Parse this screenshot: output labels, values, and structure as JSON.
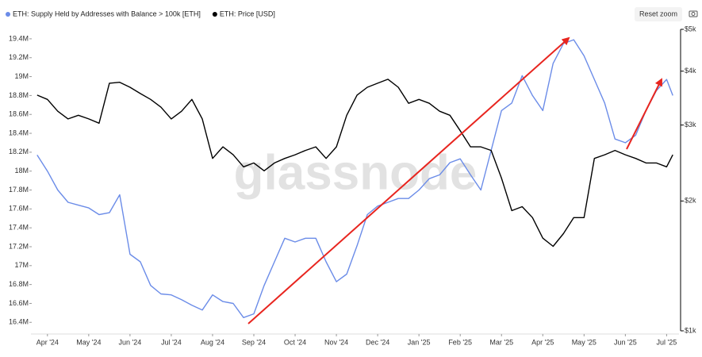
{
  "chart_data": {
    "type": "line",
    "watermark": "glassnode",
    "button": "Reset zoom",
    "x": [
      -0.25,
      0,
      0.25,
      0.5,
      0.75,
      1,
      1.25,
      1.5,
      1.75,
      2,
      2.25,
      2.5,
      2.75,
      3,
      3.25,
      3.5,
      3.75,
      4,
      4.25,
      4.5,
      4.75,
      5,
      5.25,
      5.5,
      5.75,
      6,
      6.25,
      6.5,
      6.75,
      7,
      7.25,
      7.5,
      7.75,
      8,
      8.25,
      8.5,
      8.75,
      9,
      9.25,
      9.5,
      9.75,
      10,
      10.25,
      10.5,
      10.75,
      11,
      11.25,
      11.5,
      11.75,
      12,
      12.25,
      12.5,
      12.75,
      13,
      13.25,
      13.5,
      13.75,
      14,
      14.25,
      14.5,
      14.75,
      15,
      15.15
    ],
    "series": [
      {
        "name": "ETH: Supply Held by Addresses with Balance > 100k [ETH]",
        "color": "#6b8ce8",
        "values": [
          18170000,
          18000000,
          17800000,
          17670000,
          17640000,
          17610000,
          17540000,
          17560000,
          17750000,
          17120000,
          17040000,
          16790000,
          16700000,
          16690000,
          16640000,
          16580000,
          16530000,
          16690000,
          16620000,
          16600000,
          16450000,
          16490000,
          16790000,
          17040000,
          17290000,
          17250000,
          17290000,
          17290000,
          17040000,
          16830000,
          16910000,
          17210000,
          17540000,
          17630000,
          17670000,
          17710000,
          17710000,
          17800000,
          17920000,
          17960000,
          18090000,
          18130000,
          17960000,
          17800000,
          18220000,
          18640000,
          18720000,
          19010000,
          18800000,
          18640000,
          19140000,
          19350000,
          19390000,
          19220000,
          18970000,
          18720000,
          18340000,
          18300000,
          18380000,
          18640000,
          18850000,
          18970000,
          18800000
        ]
      },
      {
        "name": "ETH: Price [USD]",
        "color": "#000000",
        "axis": "y2",
        "values": [
          3520,
          3440,
          3230,
          3100,
          3160,
          3100,
          3030,
          3750,
          3770,
          3670,
          3550,
          3440,
          3300,
          3100,
          3230,
          3440,
          3100,
          2510,
          2670,
          2560,
          2400,
          2450,
          2350,
          2450,
          2510,
          2560,
          2620,
          2670,
          2510,
          2670,
          3160,
          3520,
          3670,
          3750,
          3830,
          3670,
          3370,
          3440,
          3370,
          3230,
          3160,
          2910,
          2670,
          2670,
          2620,
          2260,
          1900,
          1940,
          1830,
          1640,
          1570,
          1680,
          1830,
          1830,
          2510,
          2560,
          2620,
          2560,
          2510,
          2450,
          2450,
          2400,
          2560
        ]
      }
    ],
    "xlim": [
      -0.4,
      15.3
    ],
    "xticks": [
      {
        "value": 0,
        "label": "Apr '24"
      },
      {
        "value": 1,
        "label": "May '24"
      },
      {
        "value": 2,
        "label": "Jun '24"
      },
      {
        "value": 3,
        "label": "Jul '24"
      },
      {
        "value": 4,
        "label": "Aug '24"
      },
      {
        "value": 5,
        "label": "Sep '24"
      },
      {
        "value": 6,
        "label": "Oct '24"
      },
      {
        "value": 7,
        "label": "Nov '24"
      },
      {
        "value": 8,
        "label": "Dec '24"
      },
      {
        "value": 9,
        "label": "Jan '25"
      },
      {
        "value": 10,
        "label": "Feb '25"
      },
      {
        "value": 11,
        "label": "Mar '25"
      },
      {
        "value": 12,
        "label": "Apr '25"
      },
      {
        "value": 13,
        "label": "May '25"
      },
      {
        "value": 14,
        "label": "Jun '25"
      },
      {
        "value": 15,
        "label": "Jul '25"
      }
    ],
    "ylim": [
      16310000,
      19500000
    ],
    "yticks": [
      {
        "value": 16400000,
        "label": "16.4M"
      },
      {
        "value": 16600000,
        "label": "16.6M"
      },
      {
        "value": 16800000,
        "label": "16.8M"
      },
      {
        "value": 17000000,
        "label": "17M"
      },
      {
        "value": 17200000,
        "label": "17.2M"
      },
      {
        "value": 17400000,
        "label": "17.4M"
      },
      {
        "value": 17600000,
        "label": "17.6M"
      },
      {
        "value": 17800000,
        "label": "17.8M"
      },
      {
        "value": 18000000,
        "label": "18M"
      },
      {
        "value": 18200000,
        "label": "18.2M"
      },
      {
        "value": 18400000,
        "label": "18.4M"
      },
      {
        "value": 18600000,
        "label": "18.6M"
      },
      {
        "value": 18800000,
        "label": "18.8M"
      },
      {
        "value": 19000000,
        "label": "19M"
      },
      {
        "value": 19200000,
        "label": "19.2M"
      },
      {
        "value": 19400000,
        "label": "19.4M"
      }
    ],
    "y2lim": [
      1000,
      5000
    ],
    "y2log": true,
    "y2ticks": [
      {
        "value": 1000,
        "label": "$1k"
      },
      {
        "value": 2000,
        "label": "$2k"
      },
      {
        "value": 3000,
        "label": "$3k"
      },
      {
        "value": 4000,
        "label": "$4k"
      },
      {
        "value": 5000,
        "label": "$5k"
      }
    ],
    "grid": false
  }
}
